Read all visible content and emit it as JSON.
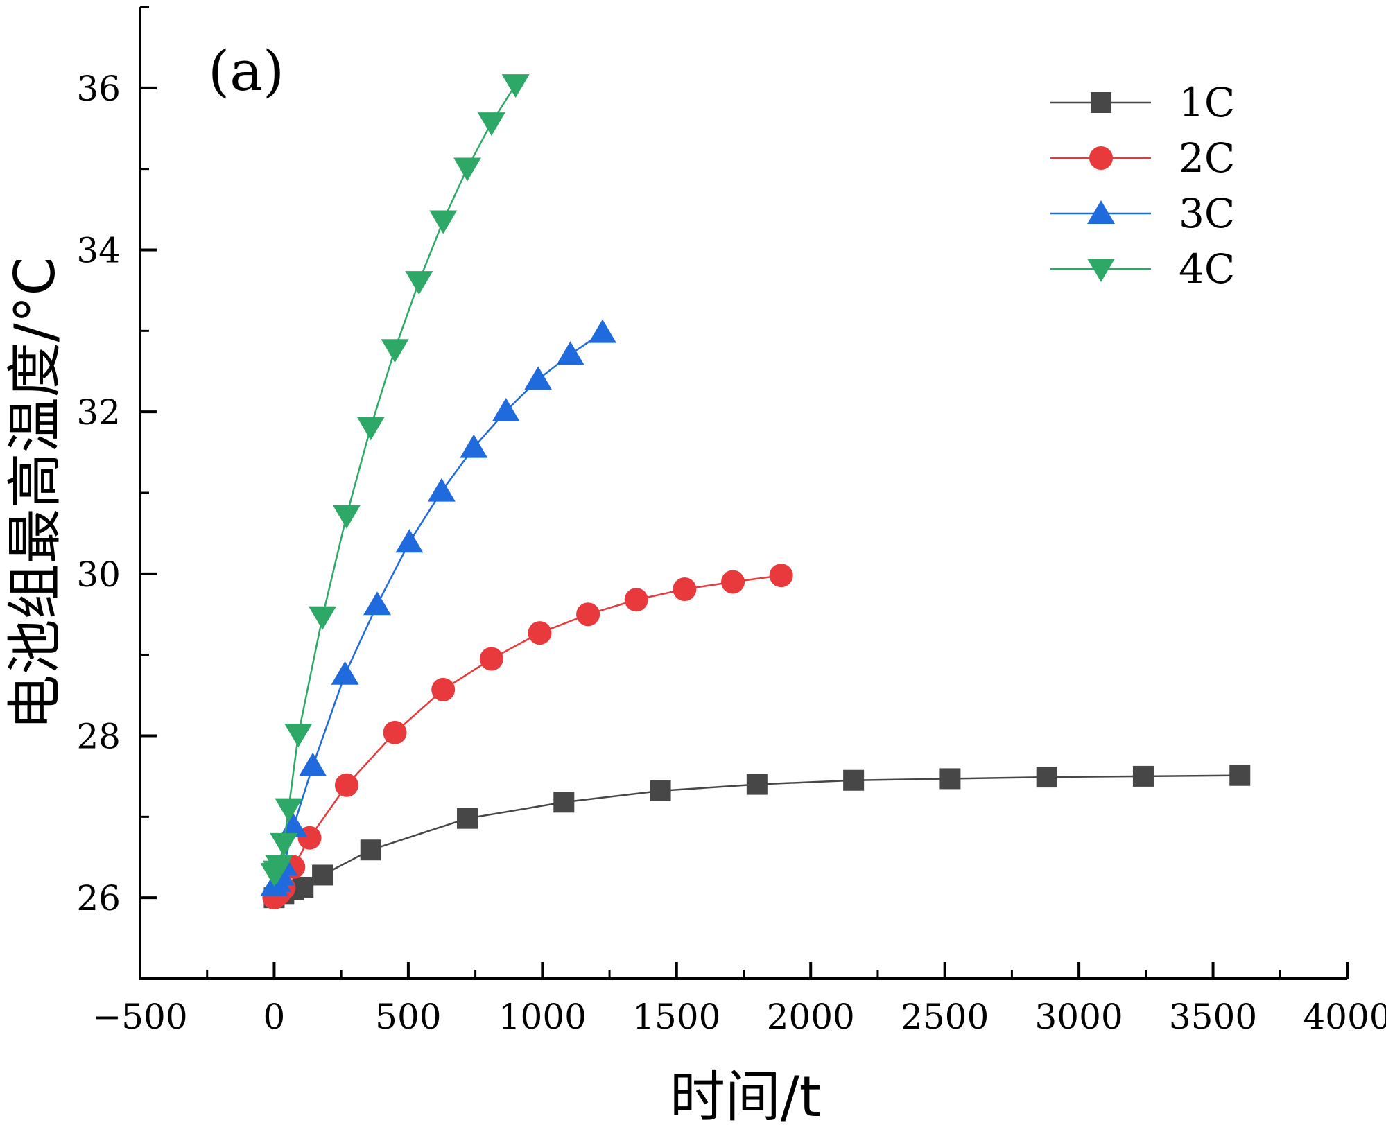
{
  "chart_data": {
    "type": "line",
    "panel_label": "(a)",
    "xlabel": "时间/t",
    "ylabel": "电池组最高温度/°C",
    "xlim": [
      -500,
      4000
    ],
    "ylim": [
      25,
      37
    ],
    "x_ticks": [
      -500,
      0,
      500,
      1000,
      1500,
      2000,
      2500,
      3000,
      3500,
      4000
    ],
    "x_tick_labels": [
      "−500",
      "0",
      "500",
      "1000",
      "1500",
      "2000",
      "2500",
      "3000",
      "3500",
      "4000"
    ],
    "y_ticks": [
      26,
      28,
      30,
      32,
      34,
      36
    ],
    "y_tick_labels": [
      "26",
      "28",
      "30",
      "32",
      "34",
      "36"
    ],
    "legend_position": "top-right",
    "series": [
      {
        "name": "1C",
        "color": "#474747",
        "marker": "square",
        "x": [
          0,
          36,
          72,
          108,
          180,
          360,
          720,
          1080,
          1440,
          1800,
          2160,
          2520,
          2880,
          3240,
          3600
        ],
        "y": [
          26.0,
          26.05,
          26.1,
          26.13,
          26.28,
          26.59,
          26.98,
          27.18,
          27.32,
          27.4,
          27.45,
          27.47,
          27.49,
          27.5,
          27.51
        ]
      },
      {
        "name": "2C",
        "color": "#E8393C",
        "marker": "circle",
        "x": [
          0,
          18,
          36,
          72,
          132,
          270,
          450,
          630,
          810,
          990,
          1170,
          1350,
          1530,
          1710,
          1890
        ],
        "y": [
          26.0,
          26.05,
          26.12,
          26.38,
          26.74,
          27.39,
          28.04,
          28.57,
          28.95,
          29.27,
          29.5,
          29.68,
          29.81,
          29.9,
          29.98
        ]
      },
      {
        "name": "3C",
        "color": "#1F6BDE",
        "marker": "triangle-up",
        "x": [
          0,
          12,
          24,
          36,
          72,
          144,
          264,
          384,
          504,
          624,
          744,
          864,
          984,
          1104,
          1224
        ],
        "y": [
          26.15,
          26.2,
          26.28,
          26.4,
          26.88,
          27.63,
          28.76,
          29.62,
          30.39,
          31.02,
          31.56,
          32.01,
          32.4,
          32.71,
          32.98
        ]
      },
      {
        "name": "4C",
        "color": "#2EA867",
        "marker": "triangle-down",
        "x": [
          0,
          9,
          18,
          36,
          54,
          90,
          180,
          270,
          360,
          450,
          540,
          630,
          720,
          810,
          900
        ],
        "y": [
          26.3,
          26.33,
          26.4,
          26.67,
          27.1,
          28.02,
          29.47,
          30.72,
          31.81,
          32.77,
          33.61,
          34.36,
          35.01,
          35.57,
          36.04
        ]
      }
    ]
  }
}
